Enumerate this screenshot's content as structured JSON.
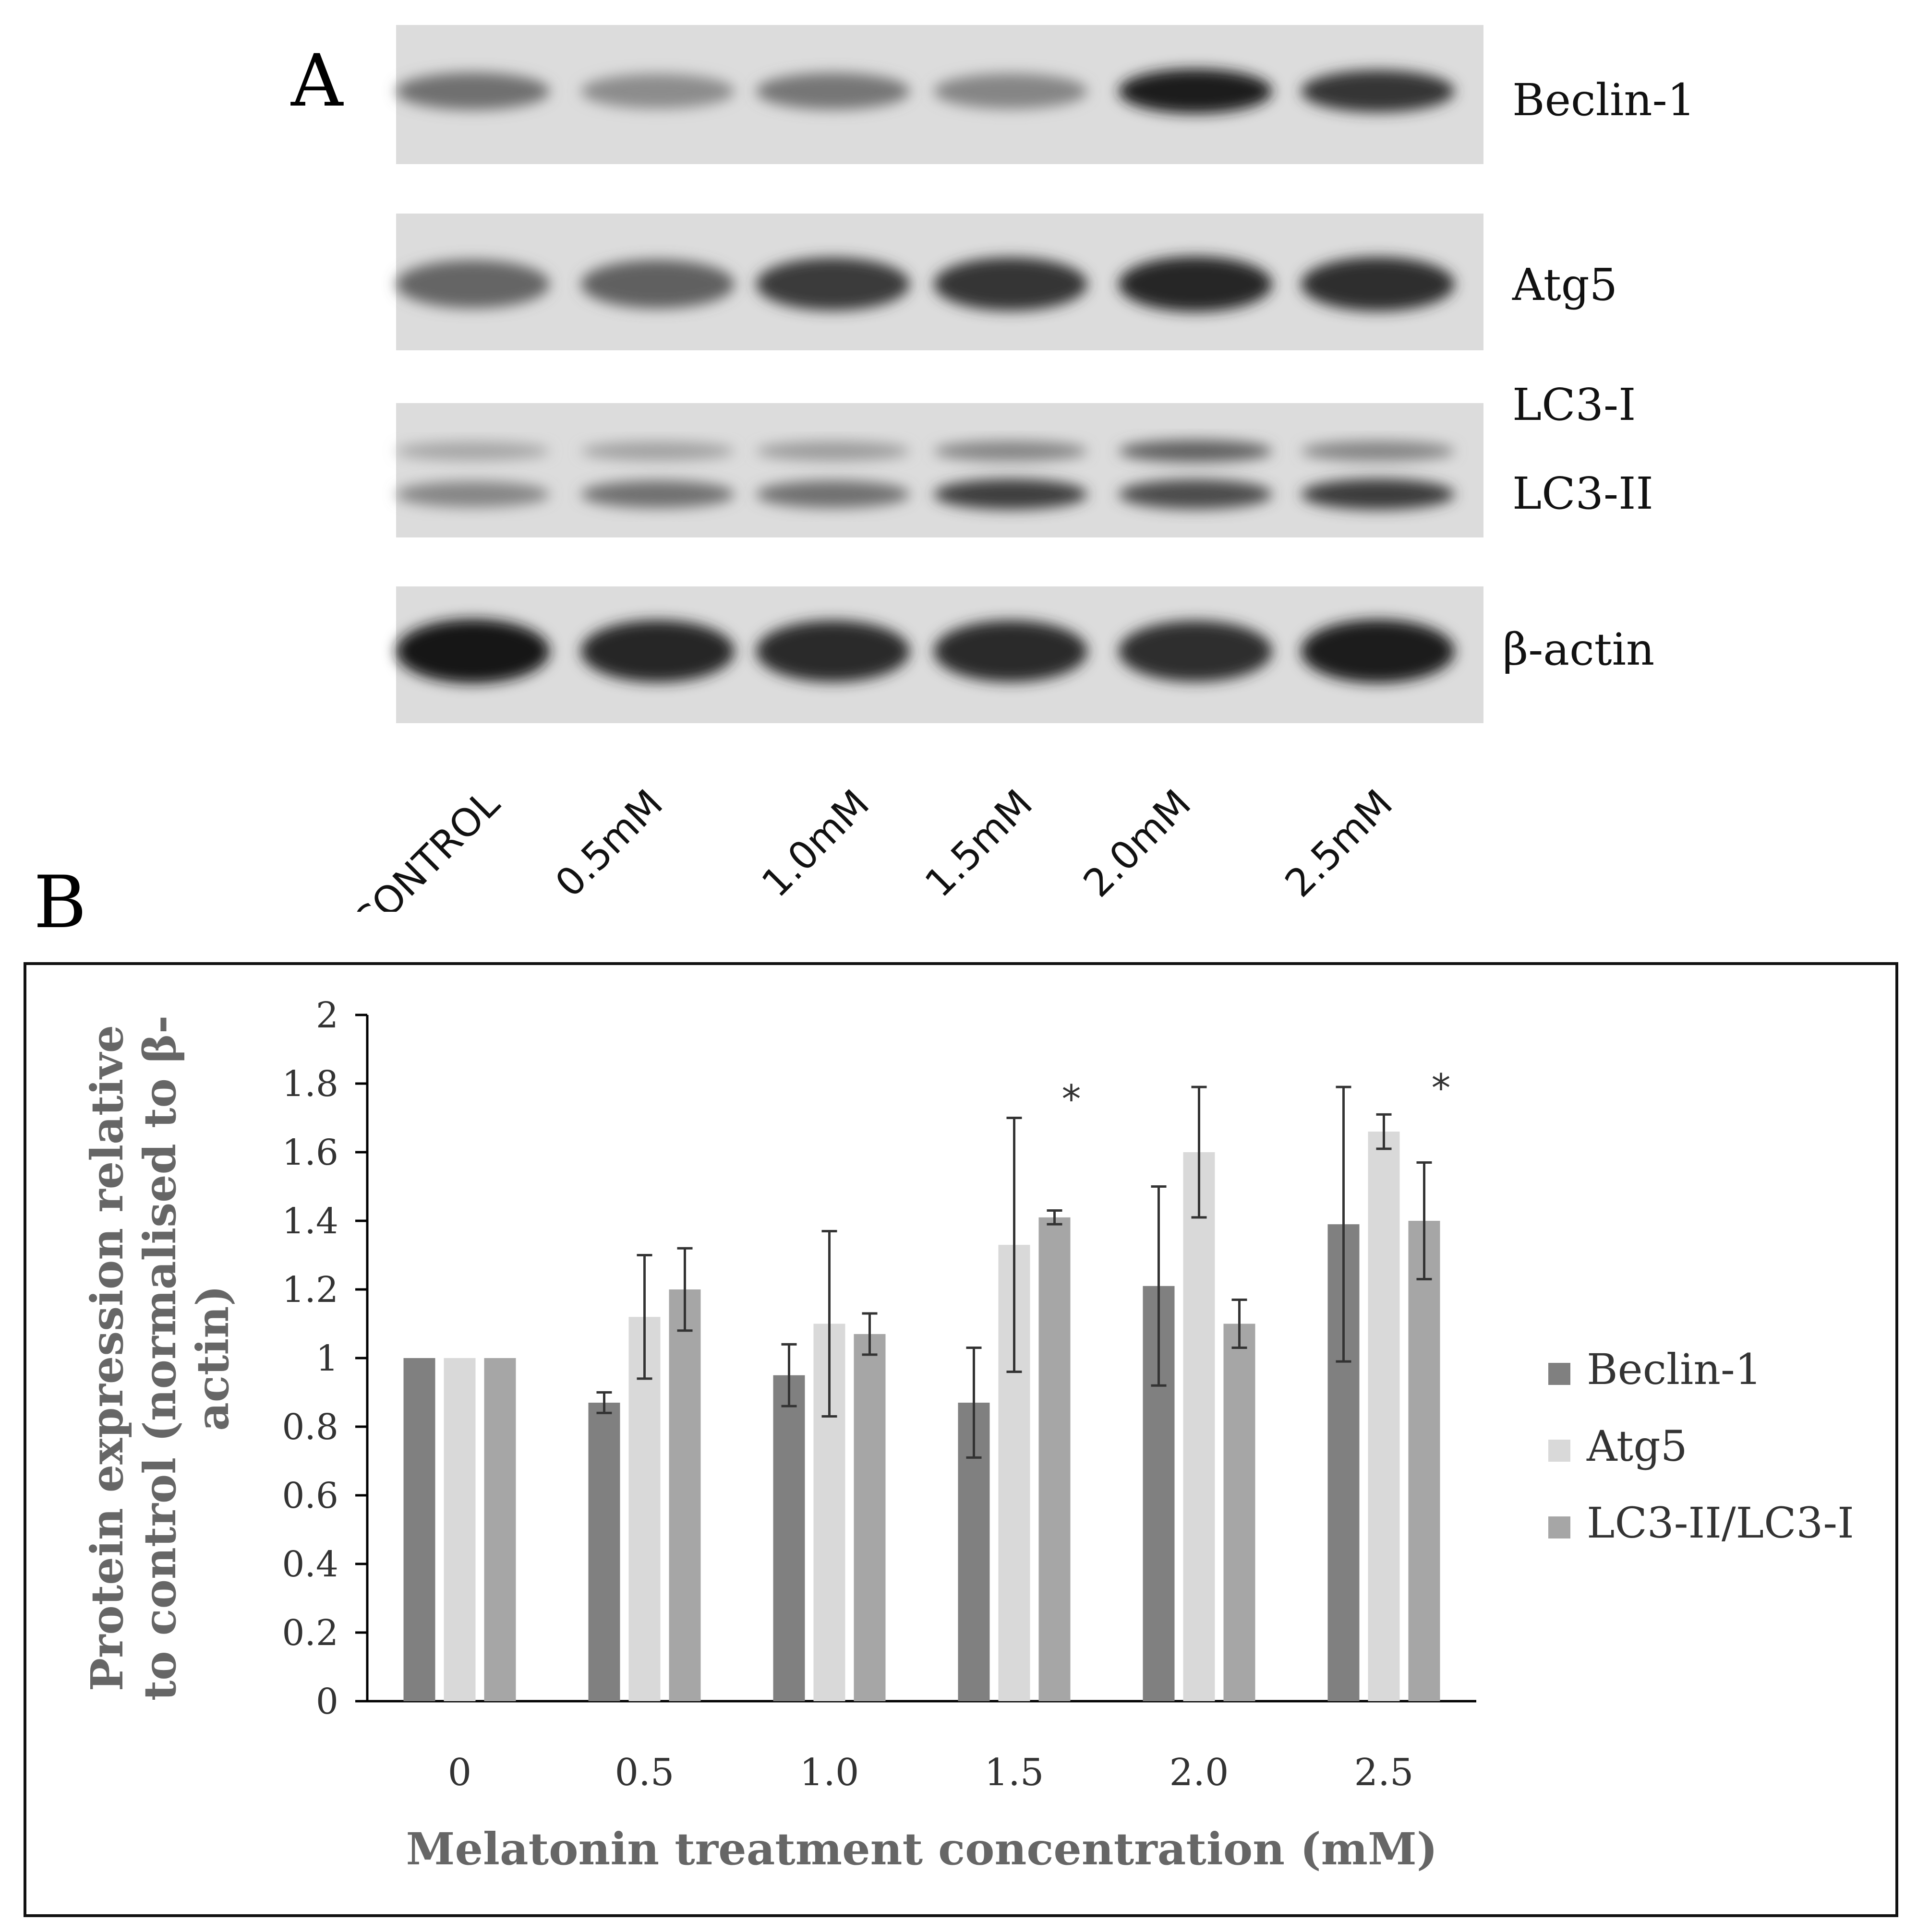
{
  "panels": {
    "a_label": "A",
    "b_label": "B"
  },
  "blot": {
    "rows": [
      {
        "label": "Beclin-1",
        "intensities": [
          0.55,
          0.42,
          0.52,
          0.45,
          0.95,
          0.82
        ]
      },
      {
        "label": "Atg5",
        "intensities": [
          0.6,
          0.62,
          0.8,
          0.82,
          0.9,
          0.85
        ]
      },
      {
        "label": "LC3-I",
        "intensities": [
          0.3,
          0.32,
          0.35,
          0.45,
          0.62,
          0.45
        ]
      },
      {
        "label": "LC3-II",
        "intensities": [
          0.45,
          0.55,
          0.55,
          0.78,
          0.72,
          0.8
        ]
      },
      {
        "label": "β-actin",
        "intensities": [
          0.98,
          0.9,
          0.88,
          0.88,
          0.86,
          0.95
        ]
      }
    ],
    "lanes": [
      "CONTROL",
      "0.5mM",
      "1.0mM",
      "1.5mM",
      "2.0mM",
      "2.5mM"
    ]
  },
  "chart_data": {
    "type": "bar",
    "categories": [
      "0",
      "0.5",
      "1.0",
      "1.5",
      "2.0",
      "2.5"
    ],
    "series": [
      {
        "name": "Beclin-1",
        "color": "#808080",
        "values": [
          1.0,
          0.87,
          0.95,
          0.87,
          1.21,
          1.39
        ],
        "errors": [
          0,
          0.03,
          0.09,
          0.16,
          0.29,
          0.4
        ]
      },
      {
        "name": "Atg5",
        "color": "#d9d9d9",
        "values": [
          1.0,
          1.12,
          1.1,
          1.33,
          1.6,
          1.66
        ],
        "errors": [
          0,
          0.18,
          0.27,
          0.37,
          0.19,
          0.05
        ]
      },
      {
        "name": "LC3-II/LC3-I",
        "color": "#a6a6a6",
        "values": [
          1.0,
          1.2,
          1.07,
          1.41,
          1.1,
          1.4
        ],
        "errors": [
          0,
          0.12,
          0.06,
          0.02,
          0.07,
          0.17
        ]
      }
    ],
    "xlabel": "Melatonin treatment concentration (mM)",
    "ylabel_line1": "Protein expression relative",
    "ylabel_line2": "to control (normalised to β-",
    "ylabel_line3": "actin)",
    "ylim": [
      0,
      2
    ],
    "yticks": [
      "0",
      "0.2",
      "0.4",
      "0.6",
      "0.8",
      "1",
      "1.2",
      "1.4",
      "1.6",
      "1.8",
      "2"
    ],
    "grid": false,
    "legend_position": "right",
    "annotations": [
      {
        "text": "*",
        "category_index": 3
      },
      {
        "text": "*",
        "category_index": 5
      }
    ]
  }
}
